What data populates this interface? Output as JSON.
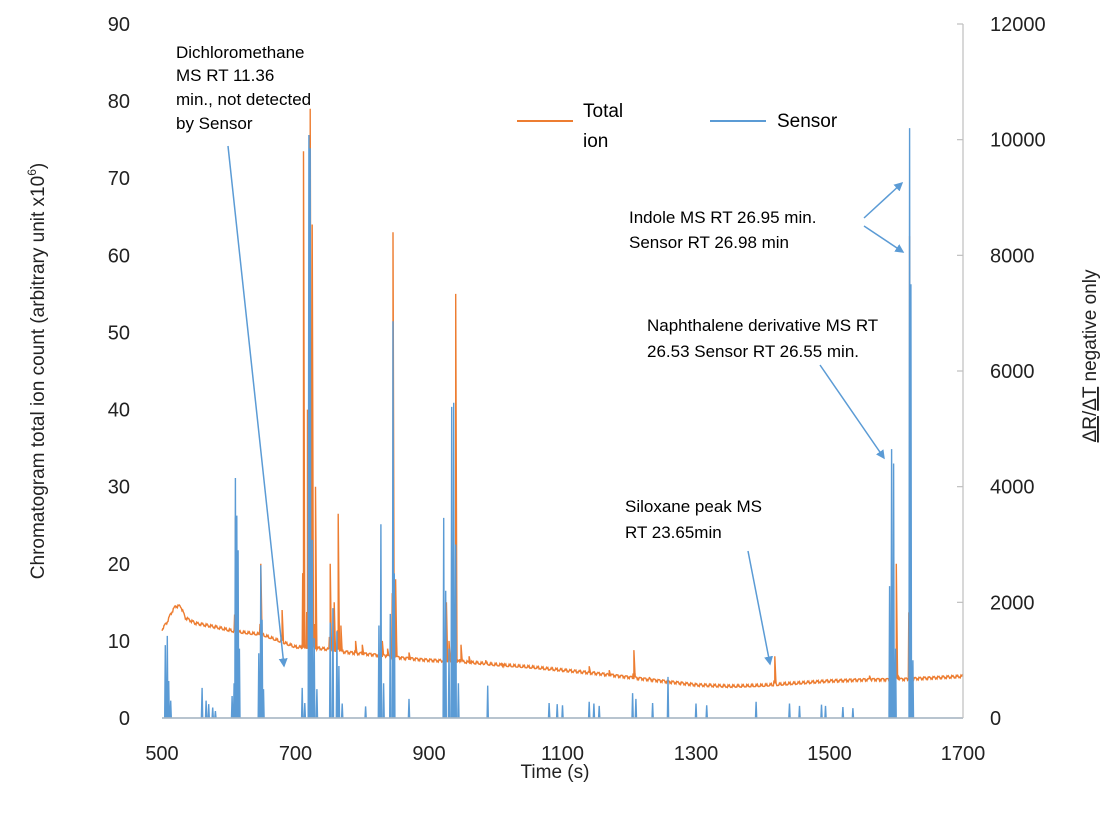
{
  "chart_data": {
    "type": "line",
    "xlabel": "Time (s)",
    "ylabel": "Chromatogram total ion count (arbitrary unit x10",
    "ylabel_sup": "6",
    "ylabel_end": ")",
    "y2label_num": "ΔR",
    "y2label_slash": "/",
    "y2label_den": "ΔT",
    "y2label_rest": " negative only",
    "xlim": [
      500,
      1700
    ],
    "ylim": [
      0,
      90
    ],
    "y2lim": [
      0,
      12000
    ],
    "x_ticks": [
      "500",
      "700",
      "900",
      "1100",
      "1300",
      "1500",
      "1700"
    ],
    "y_ticks": [
      "0",
      "10",
      "20",
      "30",
      "40",
      "50",
      "60",
      "70",
      "80",
      "90"
    ],
    "y2_ticks": [
      "0",
      "2000",
      "4000",
      "6000",
      "8000",
      "10000",
      "12000"
    ],
    "colors": {
      "total_ion": "#ED7D31",
      "sensor": "#5B9BD5",
      "arrow": "#5B9BD5"
    },
    "legend": {
      "total_ion_line1": "Total",
      "total_ion_line2": "ion",
      "sensor": "Sensor"
    },
    "series": [
      {
        "name": "Total ion",
        "axis": "left",
        "baseline": [
          [
            500,
            11.5
          ],
          [
            508,
            12.5
          ],
          [
            513,
            13.5
          ],
          [
            520,
            14.5
          ],
          [
            528,
            14.5
          ],
          [
            535,
            13
          ],
          [
            550,
            12.3
          ],
          [
            580,
            11.8
          ],
          [
            610,
            11.2
          ],
          [
            650,
            10.8
          ],
          [
            700,
            9.2
          ],
          [
            740,
            9
          ],
          [
            780,
            8.5
          ],
          [
            820,
            8.2
          ],
          [
            860,
            7.8
          ],
          [
            900,
            7.5
          ],
          [
            950,
            7.3
          ],
          [
            1000,
            6.9
          ],
          [
            1050,
            6.6
          ],
          [
            1100,
            6.2
          ],
          [
            1150,
            5.8
          ],
          [
            1200,
            5.3
          ],
          [
            1250,
            4.8
          ],
          [
            1300,
            4.3
          ],
          [
            1350,
            4.1
          ],
          [
            1400,
            4.2
          ],
          [
            1450,
            4.5
          ],
          [
            1500,
            4.8
          ],
          [
            1560,
            5
          ],
          [
            1600,
            5
          ],
          [
            1650,
            5.2
          ],
          [
            1700,
            5.4
          ]
        ],
        "peaks": [
          [
            610,
            26
          ],
          [
            612,
            20
          ],
          [
            648,
            20
          ],
          [
            680,
            14
          ],
          [
            712,
            73.5
          ],
          [
            718,
            40
          ],
          [
            722,
            79
          ],
          [
            725,
            64
          ],
          [
            730,
            30
          ],
          [
            752,
            20
          ],
          [
            758,
            15
          ],
          [
            764,
            26.5
          ],
          [
            768,
            12
          ],
          [
            790,
            10
          ],
          [
            800,
            9.5
          ],
          [
            830,
            10
          ],
          [
            838,
            9
          ],
          [
            846,
            63
          ],
          [
            850,
            18
          ],
          [
            870,
            8.5
          ],
          [
            926,
            15
          ],
          [
            930,
            10
          ],
          [
            940,
            55
          ],
          [
            948,
            9.5
          ],
          [
            960,
            8
          ],
          [
            985,
            7.5
          ],
          [
            1010,
            7
          ],
          [
            1140,
            6.7
          ],
          [
            1170,
            6.2
          ],
          [
            1207,
            8.8
          ],
          [
            1230,
            5.3
          ],
          [
            1418,
            8
          ],
          [
            1560,
            5.5
          ],
          [
            1593,
            15
          ],
          [
            1600,
            20
          ],
          [
            1604,
            5.3
          ],
          [
            1620,
            62.5
          ]
        ]
      },
      {
        "name": "Sensor",
        "axis": "right",
        "peaks": [
          [
            505,
            1260
          ],
          [
            508,
            1420
          ],
          [
            510,
            640
          ],
          [
            513,
            300
          ],
          [
            560,
            520
          ],
          [
            566,
            300
          ],
          [
            570,
            240
          ],
          [
            576,
            180
          ],
          [
            580,
            120
          ],
          [
            605,
            380
          ],
          [
            608,
            600
          ],
          [
            610,
            4150
          ],
          [
            612,
            3500
          ],
          [
            614,
            2900
          ],
          [
            616,
            1200
          ],
          [
            645,
            1120
          ],
          [
            648,
            2640
          ],
          [
            650,
            1700
          ],
          [
            652,
            500
          ],
          [
            710,
            520
          ],
          [
            714,
            260
          ],
          [
            720,
            10080
          ],
          [
            722,
            9850
          ],
          [
            725,
            3080
          ],
          [
            728,
            1380
          ],
          [
            732,
            500
          ],
          [
            752,
            1650
          ],
          [
            756,
            1900
          ],
          [
            762,
            1500
          ],
          [
            765,
            900
          ],
          [
            770,
            250
          ],
          [
            805,
            200
          ],
          [
            825,
            1600
          ],
          [
            828,
            3350
          ],
          [
            832,
            600
          ],
          [
            842,
            1800
          ],
          [
            846,
            6860
          ],
          [
            848,
            2500
          ],
          [
            870,
            330
          ],
          [
            922,
            3460
          ],
          [
            925,
            2200
          ],
          [
            930,
            1200
          ],
          [
            934,
            5380
          ],
          [
            937,
            5450
          ],
          [
            940,
            3000
          ],
          [
            944,
            600
          ],
          [
            988,
            560
          ],
          [
            1080,
            260
          ],
          [
            1092,
            240
          ],
          [
            1100,
            220
          ],
          [
            1140,
            280
          ],
          [
            1147,
            250
          ],
          [
            1155,
            210
          ],
          [
            1205,
            430
          ],
          [
            1210,
            330
          ],
          [
            1235,
            260
          ],
          [
            1258,
            710
          ],
          [
            1300,
            250
          ],
          [
            1316,
            220
          ],
          [
            1390,
            280
          ],
          [
            1440,
            250
          ],
          [
            1455,
            210
          ],
          [
            1488,
            230
          ],
          [
            1494,
            210
          ],
          [
            1520,
            190
          ],
          [
            1535,
            170
          ],
          [
            1590,
            2280
          ],
          [
            1593,
            4650
          ],
          [
            1596,
            4400
          ],
          [
            1599,
            1200
          ],
          [
            1620,
            10200
          ],
          [
            1622,
            7500
          ],
          [
            1625,
            1000
          ]
        ]
      }
    ],
    "annotations": [
      {
        "lines": [
          "Dichloromethane",
          "MS RT 11.36",
          "min., not detected",
          "by Sensor"
        ]
      },
      {
        "lines": [
          "Indole MS RT 26.95 min.",
          "Sensor RT 26.98 min"
        ]
      },
      {
        "lines": [
          "Naphthalene derivative MS RT",
          "26.53 Sensor RT 26.55 min."
        ]
      },
      {
        "lines": [
          "Siloxane peak MS",
          "RT 23.65min"
        ]
      }
    ]
  }
}
